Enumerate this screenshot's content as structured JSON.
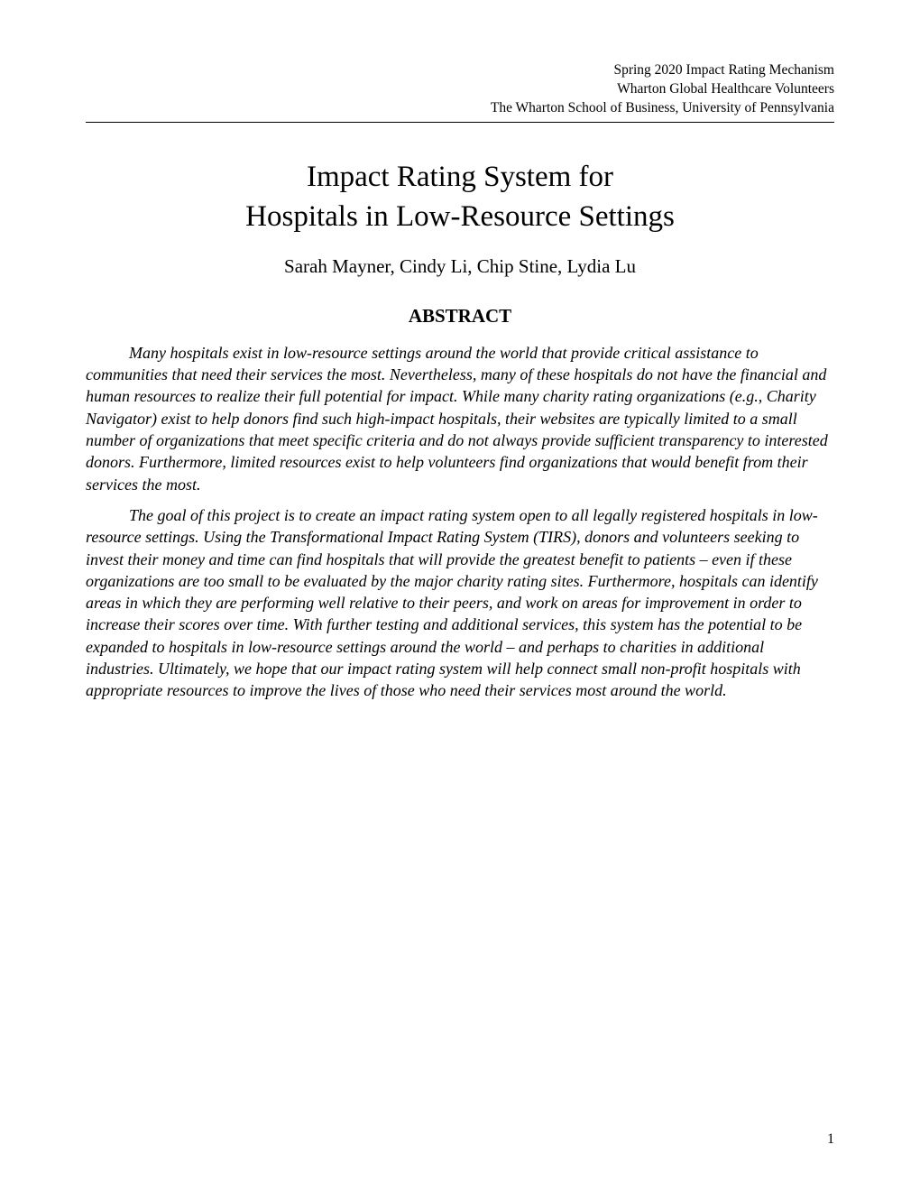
{
  "header": {
    "line1": "Spring 2020 Impact Rating Mechanism",
    "line2": "Wharton Global Healthcare Volunteers",
    "line3": "The Wharton School of Business, University of Pennsylvania"
  },
  "title": {
    "line1": "Impact Rating System for",
    "line2": "Hospitals in Low-Resource Settings"
  },
  "authors": "Sarah Mayner, Cindy Li, Chip Stine, Lydia Lu",
  "abstract_heading": "ABSTRACT",
  "abstract": {
    "paragraph1": "Many hospitals exist in low-resource settings around the world that provide critical assistance to communities that need their services the most. Nevertheless, many of these hospitals do not have the financial and human resources to realize their full potential for impact. While many charity rating organizations (e.g., Charity Navigator) exist to help donors find such high-impact hospitals, their websites are typically limited to a small number of organizations that meet specific criteria and do not always provide sufficient transparency to interested donors. Furthermore, limited resources exist to help volunteers find organizations that would benefit from their services the most.",
    "paragraph2": "The goal of this project is to create an impact rating system open to all legally registered hospitals in low-resource settings. Using the Transformational Impact Rating System (TIRS), donors and volunteers seeking to invest their money and time can find hospitals that will provide the greatest benefit to patients – even if these organizations are too small to be evaluated by the major charity rating sites. Furthermore, hospitals can identify areas in which they are performing well relative to their peers, and work on areas for improvement in order to increase their scores over time. With further testing and additional services, this system has the potential to be expanded to hospitals in low-resource settings around the world – and perhaps to charities in additional industries. Ultimately, we hope that our impact rating system will help connect small non-profit hospitals with appropriate resources to improve the lives of those who need their services most around the world."
  },
  "page_number": "1",
  "styles": {
    "background_color": "#ffffff",
    "text_color": "#000000",
    "header_fontsize": 15.5,
    "title_fontsize": 33,
    "authors_fontsize": 21,
    "abstract_heading_fontsize": 21,
    "abstract_body_fontsize": 18,
    "page_number_fontsize": 16,
    "font_family": "Times New Roman"
  }
}
